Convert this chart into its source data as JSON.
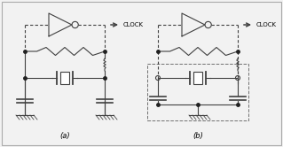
{
  "label_a": "(a)",
  "label_b": "(b)",
  "clock_text": "CLOCK",
  "bg_color": "#f2f2f2",
  "line_color": "#404040",
  "dot_color": "#202020",
  "dashed_color": "#707070",
  "figsize": [
    3.19,
    1.66
  ],
  "dpi": 100,
  "border_color": "#aaaaaa"
}
